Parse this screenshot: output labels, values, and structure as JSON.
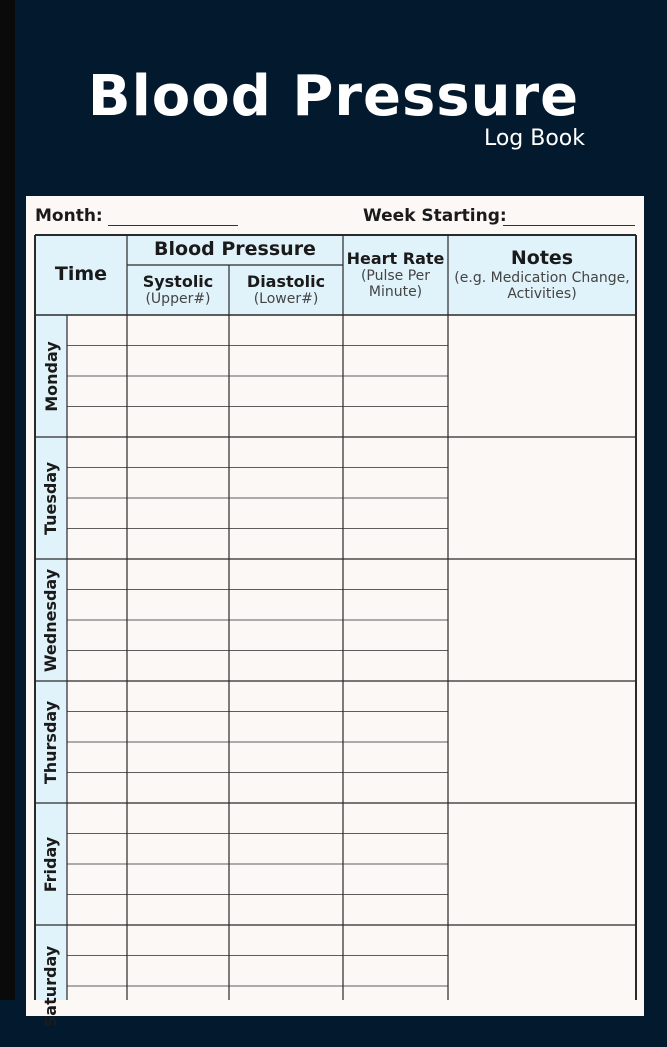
{
  "cover": {
    "title": "Blood Pressure",
    "subtitle": "Log Book"
  },
  "form": {
    "month_label": "Month:",
    "week_label": "Week Starting:"
  },
  "table": {
    "time_header": "Time",
    "bp_header": "Blood Pressure",
    "systolic_header": "Systolic",
    "systolic_note": "(Upper#)",
    "diastolic_header": "Diastolic",
    "diastolic_note": "(Lower#)",
    "heart_header": "Heart Rate",
    "heart_note_1": "(Pulse Per",
    "heart_note_2": "Minute)",
    "notes_header": "Notes",
    "notes_note_1": "(e.g. Medication Change,",
    "notes_note_2": "Activities)",
    "days": [
      "Monday",
      "Tuesday",
      "Wednesday",
      "Thursday",
      "Friday",
      "Saturday"
    ]
  },
  "colors": {
    "cover_bg": "#03192d",
    "header_fill": "#e0f2fa",
    "sheet_bg": "#fbf8f6"
  }
}
